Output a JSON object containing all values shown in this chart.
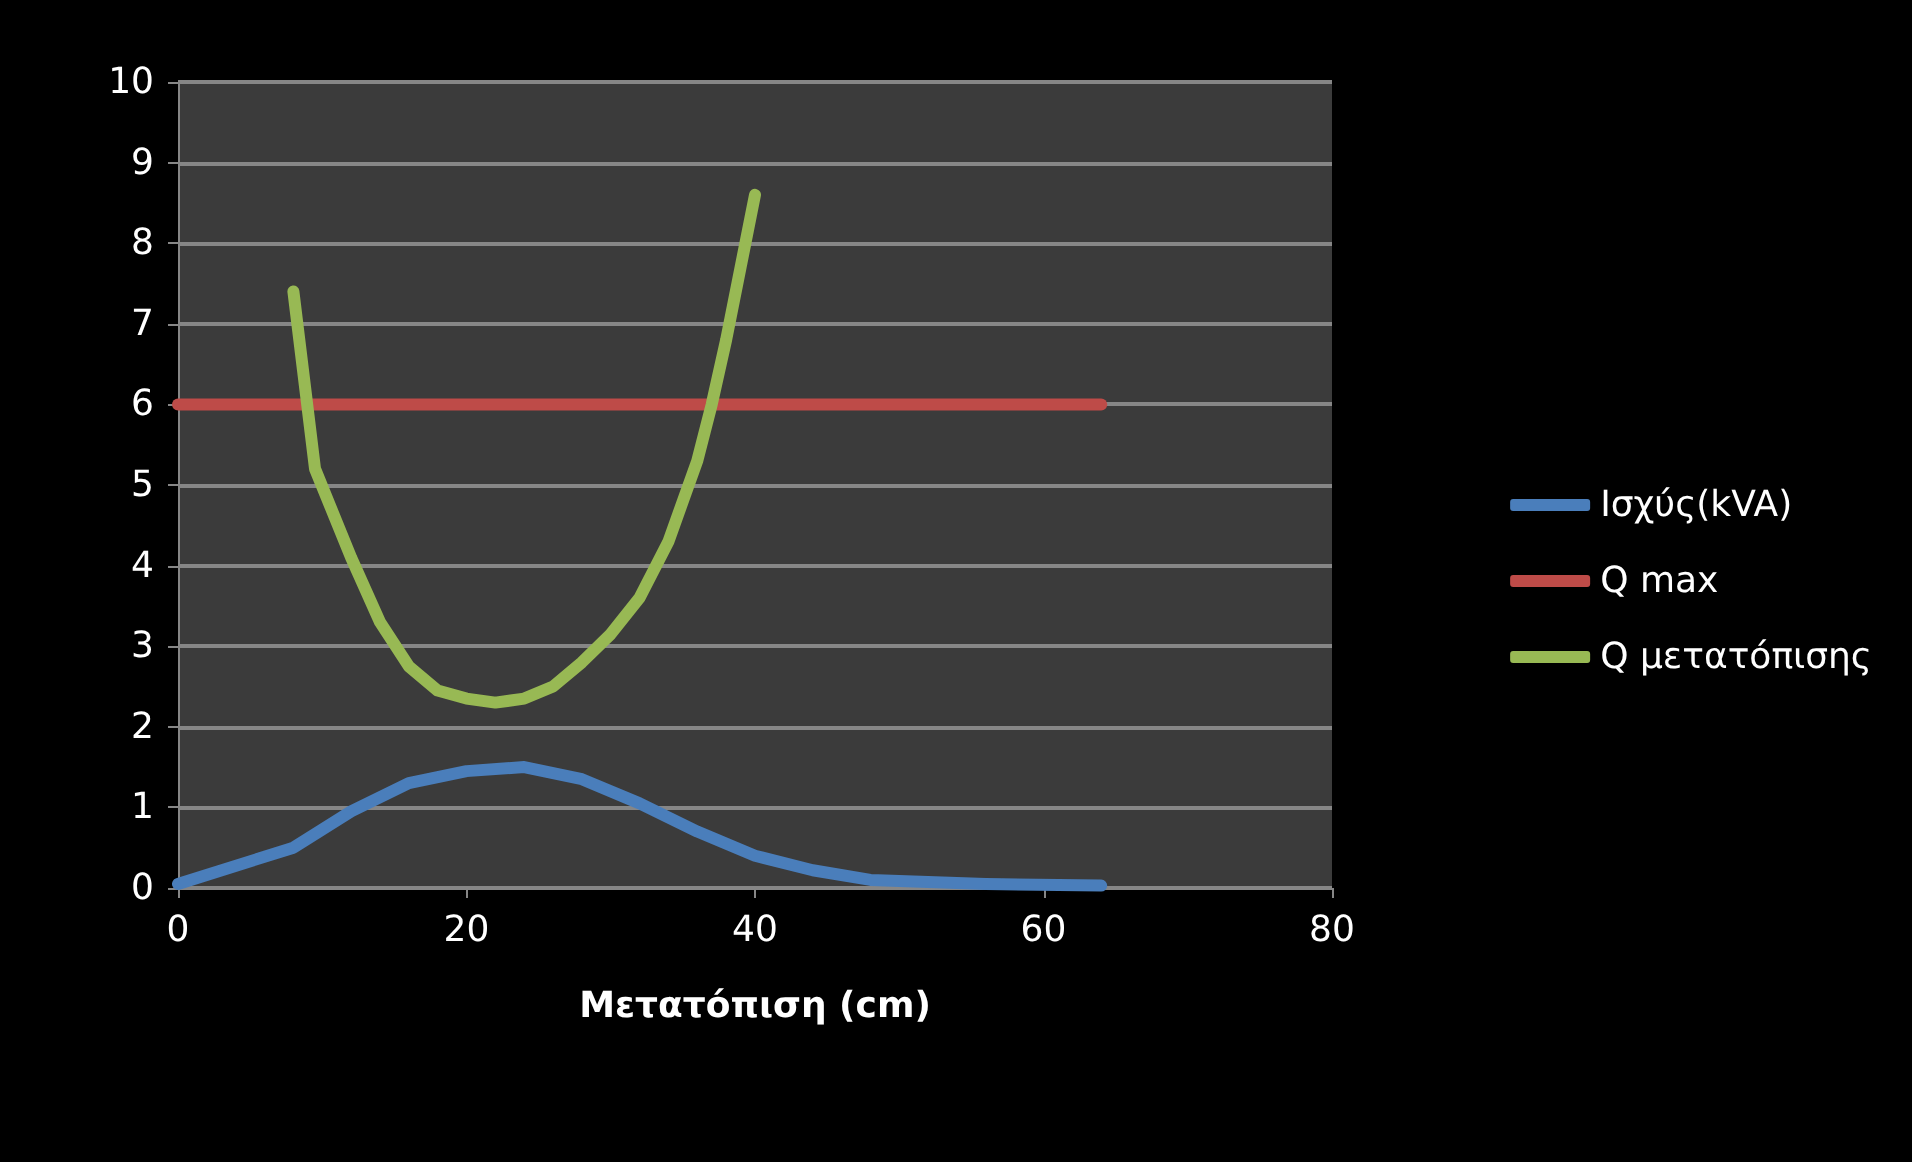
{
  "chart_data": {
    "type": "line",
    "xlabel": "Μετατόπιση (cm)",
    "xlim": [
      0,
      80
    ],
    "xticks": [
      0,
      20,
      40,
      60,
      80
    ],
    "ylim": [
      0,
      10
    ],
    "yticks": [
      0,
      1,
      2,
      3,
      4,
      5,
      6,
      7,
      8,
      9,
      10
    ],
    "grid": "y",
    "legend": "right",
    "marker": "none",
    "line_style": "solid",
    "series": [
      {
        "name": "Ισχύς(kVA)",
        "color": "#4a7ebb",
        "x": [
          0,
          8,
          12,
          16,
          20,
          24,
          28,
          32,
          36,
          40,
          44,
          48,
          56,
          64
        ],
        "values": [
          0.05,
          0.5,
          0.95,
          1.3,
          1.45,
          1.5,
          1.35,
          1.05,
          0.7,
          0.4,
          0.22,
          0.1,
          0.05,
          0.03
        ]
      },
      {
        "name": "Q max",
        "color": "#be4b48",
        "x": [
          0,
          64
        ],
        "values": [
          6,
          6
        ]
      },
      {
        "name": "Q μετατόπισης",
        "color": "#98b954",
        "x": [
          8,
          9.5,
          12,
          14,
          16,
          18,
          20,
          22,
          24,
          26,
          28,
          30,
          32,
          34,
          36,
          37,
          38,
          39,
          40
        ],
        "values": [
          7.4,
          5.2,
          4.1,
          3.3,
          2.75,
          2.45,
          2.35,
          2.3,
          2.35,
          2.5,
          2.8,
          3.15,
          3.6,
          4.3,
          5.3,
          6.0,
          6.8,
          7.7,
          8.6
        ]
      }
    ]
  }
}
